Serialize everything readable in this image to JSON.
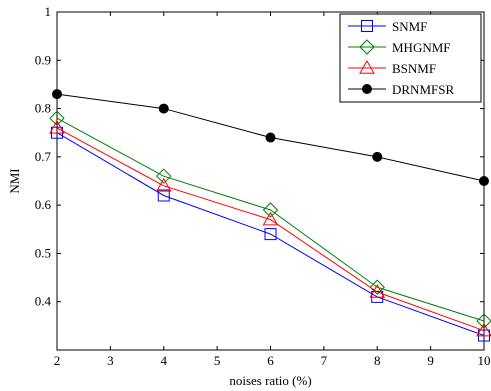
{
  "chart_data": {
    "type": "line",
    "title": "",
    "xlabel": "noises ratio (%)",
    "ylabel": "NMI",
    "x": [
      2,
      4,
      6,
      8,
      10
    ],
    "xlim": [
      2,
      10
    ],
    "ylim": [
      0.3,
      1
    ],
    "xticks": [
      "2",
      "3",
      "4",
      "5",
      "6",
      "7",
      "8",
      "9",
      "10"
    ],
    "yticks": [
      "0.4",
      "0.5",
      "0.6",
      "0.7",
      "0.8",
      "0.9",
      "1"
    ],
    "grid": false,
    "legend_position": "top-right",
    "series": [
      {
        "name": "SNMF",
        "color": "#0000ff",
        "marker": "square",
        "values": [
          0.75,
          0.62,
          0.54,
          0.41,
          0.33
        ]
      },
      {
        "name": "MHGNMF",
        "color": "#008000",
        "marker": "diamond",
        "values": [
          0.78,
          0.66,
          0.59,
          0.43,
          0.36
        ]
      },
      {
        "name": "BSNMF",
        "color": "#ff0000",
        "marker": "triangle",
        "values": [
          0.76,
          0.64,
          0.57,
          0.42,
          0.34
        ]
      },
      {
        "name": "DRNMFSR",
        "color": "#000000",
        "marker": "circle-filled",
        "values": [
          0.83,
          0.8,
          0.74,
          0.7,
          0.65
        ]
      }
    ]
  }
}
